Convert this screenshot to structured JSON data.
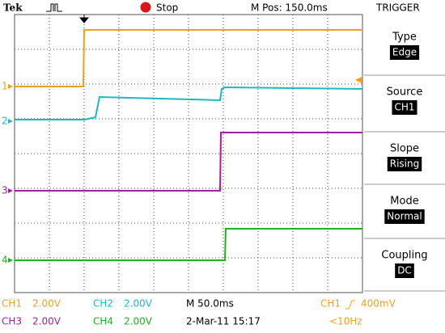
{
  "header": {
    "brand": "Tek",
    "status": "Stop",
    "position": "M Pos: 150.0ms",
    "menu_title": "TRIGGER"
  },
  "menu": [
    {
      "label": "Type",
      "value": "Edge"
    },
    {
      "label": "Source",
      "value": "CH1"
    },
    {
      "label": "Slope",
      "value": "Rising"
    },
    {
      "label": "Mode",
      "value": "Normal"
    },
    {
      "label": "Coupling",
      "value": "DC"
    }
  ],
  "channel_markers": [
    "1",
    "2",
    "3",
    "4"
  ],
  "footer": {
    "ch1": {
      "name": "CH1",
      "scale": "2.00V"
    },
    "ch2": {
      "name": "CH2",
      "scale": "2.00V"
    },
    "ch3": {
      "name": "CH3",
      "scale": "2.00V"
    },
    "ch4": {
      "name": "CH4",
      "scale": "2.00V"
    },
    "timebase": "M 50.0ms",
    "trigger": {
      "source": "CH1",
      "level": "400mV"
    },
    "date": "2-Mar-11 15:17",
    "frequency": "<10Hz"
  }
}
